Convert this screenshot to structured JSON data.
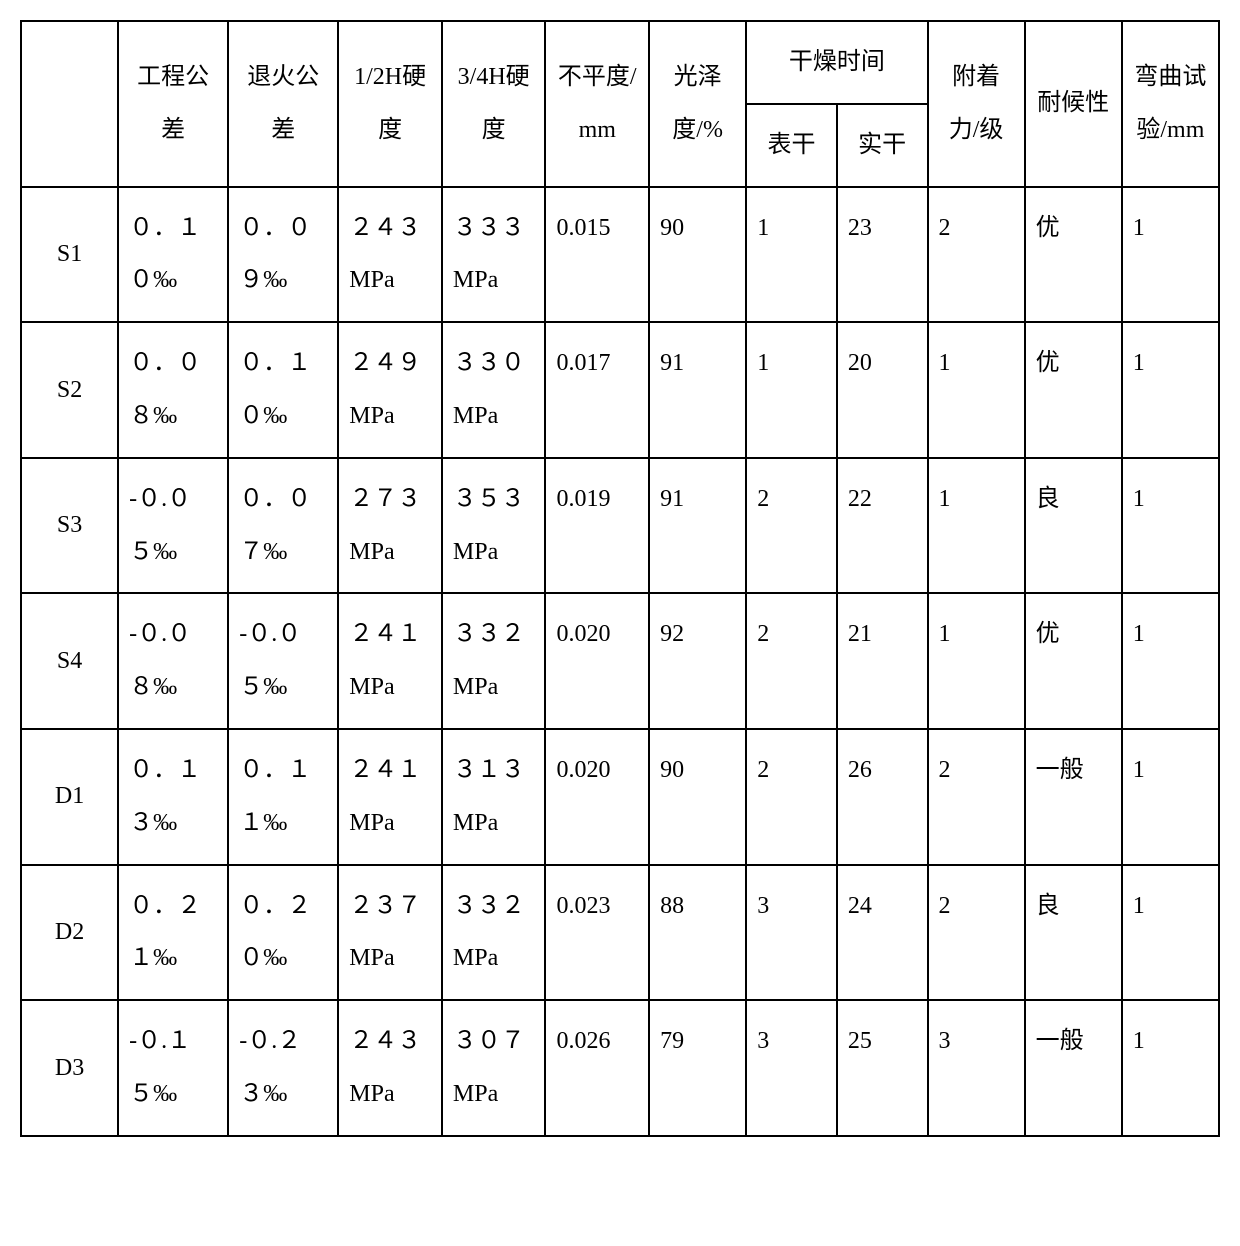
{
  "table": {
    "type": "table",
    "background_color": "#ffffff",
    "border_color": "#000000",
    "font_family": "SimSun",
    "header_fontsize": 24,
    "cell_fontsize": 24,
    "columns": {
      "blank": "",
      "eng_tol": "工程公差",
      "anneal_tol": "退火公差",
      "h12": "1/2H硬度",
      "h34": "3/4H硬度",
      "flatness": "不平度/mm",
      "gloss": "光泽度/%",
      "dry_time": "干燥时间",
      "dry_surface": "表干",
      "dry_full": "实干",
      "adhesion": "附着力/级",
      "weather": "耐候性",
      "bend": "弯曲试验/mm"
    },
    "rows": [
      {
        "label": "S1",
        "eng_tol": "０．１０‰",
        "anneal_tol": "０．０９‰",
        "h12": "２４３MPa",
        "h34": "３３３MPa",
        "flatness": "0.015",
        "gloss": "90",
        "dry_surface": "1",
        "dry_full": "23",
        "adhesion": "2",
        "weather": "优",
        "bend": "1"
      },
      {
        "label": "S2",
        "eng_tol": "０．０８‰",
        "anneal_tol": "０．１０‰",
        "h12": "２４９MPa",
        "h34": "３３０MPa",
        "flatness": "0.017",
        "gloss": "91",
        "dry_surface": "1",
        "dry_full": "20",
        "adhesion": "1",
        "weather": "优",
        "bend": "1"
      },
      {
        "label": "S3",
        "eng_tol": "-０.０５‰",
        "anneal_tol": "０．０７‰",
        "h12": "２７３MPa",
        "h34": "３５３MPa",
        "flatness": "0.019",
        "gloss": "91",
        "dry_surface": "2",
        "dry_full": "22",
        "adhesion": "1",
        "weather": "良",
        "bend": "1"
      },
      {
        "label": "S4",
        "eng_tol": "-０.０８‰",
        "anneal_tol": "-０.０５‰",
        "h12": "２４１MPa",
        "h34": "３３２MPa",
        "flatness": "0.020",
        "gloss": "92",
        "dry_surface": "2",
        "dry_full": "21",
        "adhesion": "1",
        "weather": "优",
        "bend": "1"
      },
      {
        "label": "D1",
        "eng_tol": "０．１３‰",
        "anneal_tol": "０．１１‰",
        "h12": "２４１MPa",
        "h34": "３１３MPa",
        "flatness": "0.020",
        "gloss": "90",
        "dry_surface": "2",
        "dry_full": "26",
        "adhesion": "2",
        "weather": "一般",
        "bend": "1"
      },
      {
        "label": "D2",
        "eng_tol": "０．２１‰",
        "anneal_tol": "０．２０‰",
        "h12": "２３７MPa",
        "h34": "３３２MPa",
        "flatness": "0.023",
        "gloss": "88",
        "dry_surface": "3",
        "dry_full": "24",
        "adhesion": "2",
        "weather": "良",
        "bend": "1"
      },
      {
        "label": "D3",
        "eng_tol": "-０.１５‰",
        "anneal_tol": "-０.２３‰",
        "h12": "２４３MPa",
        "h34": "３０７MPa",
        "flatness": "0.026",
        "gloss": "79",
        "dry_surface": "3",
        "dry_full": "25",
        "adhesion": "3",
        "weather": "一般",
        "bend": "1"
      }
    ]
  }
}
